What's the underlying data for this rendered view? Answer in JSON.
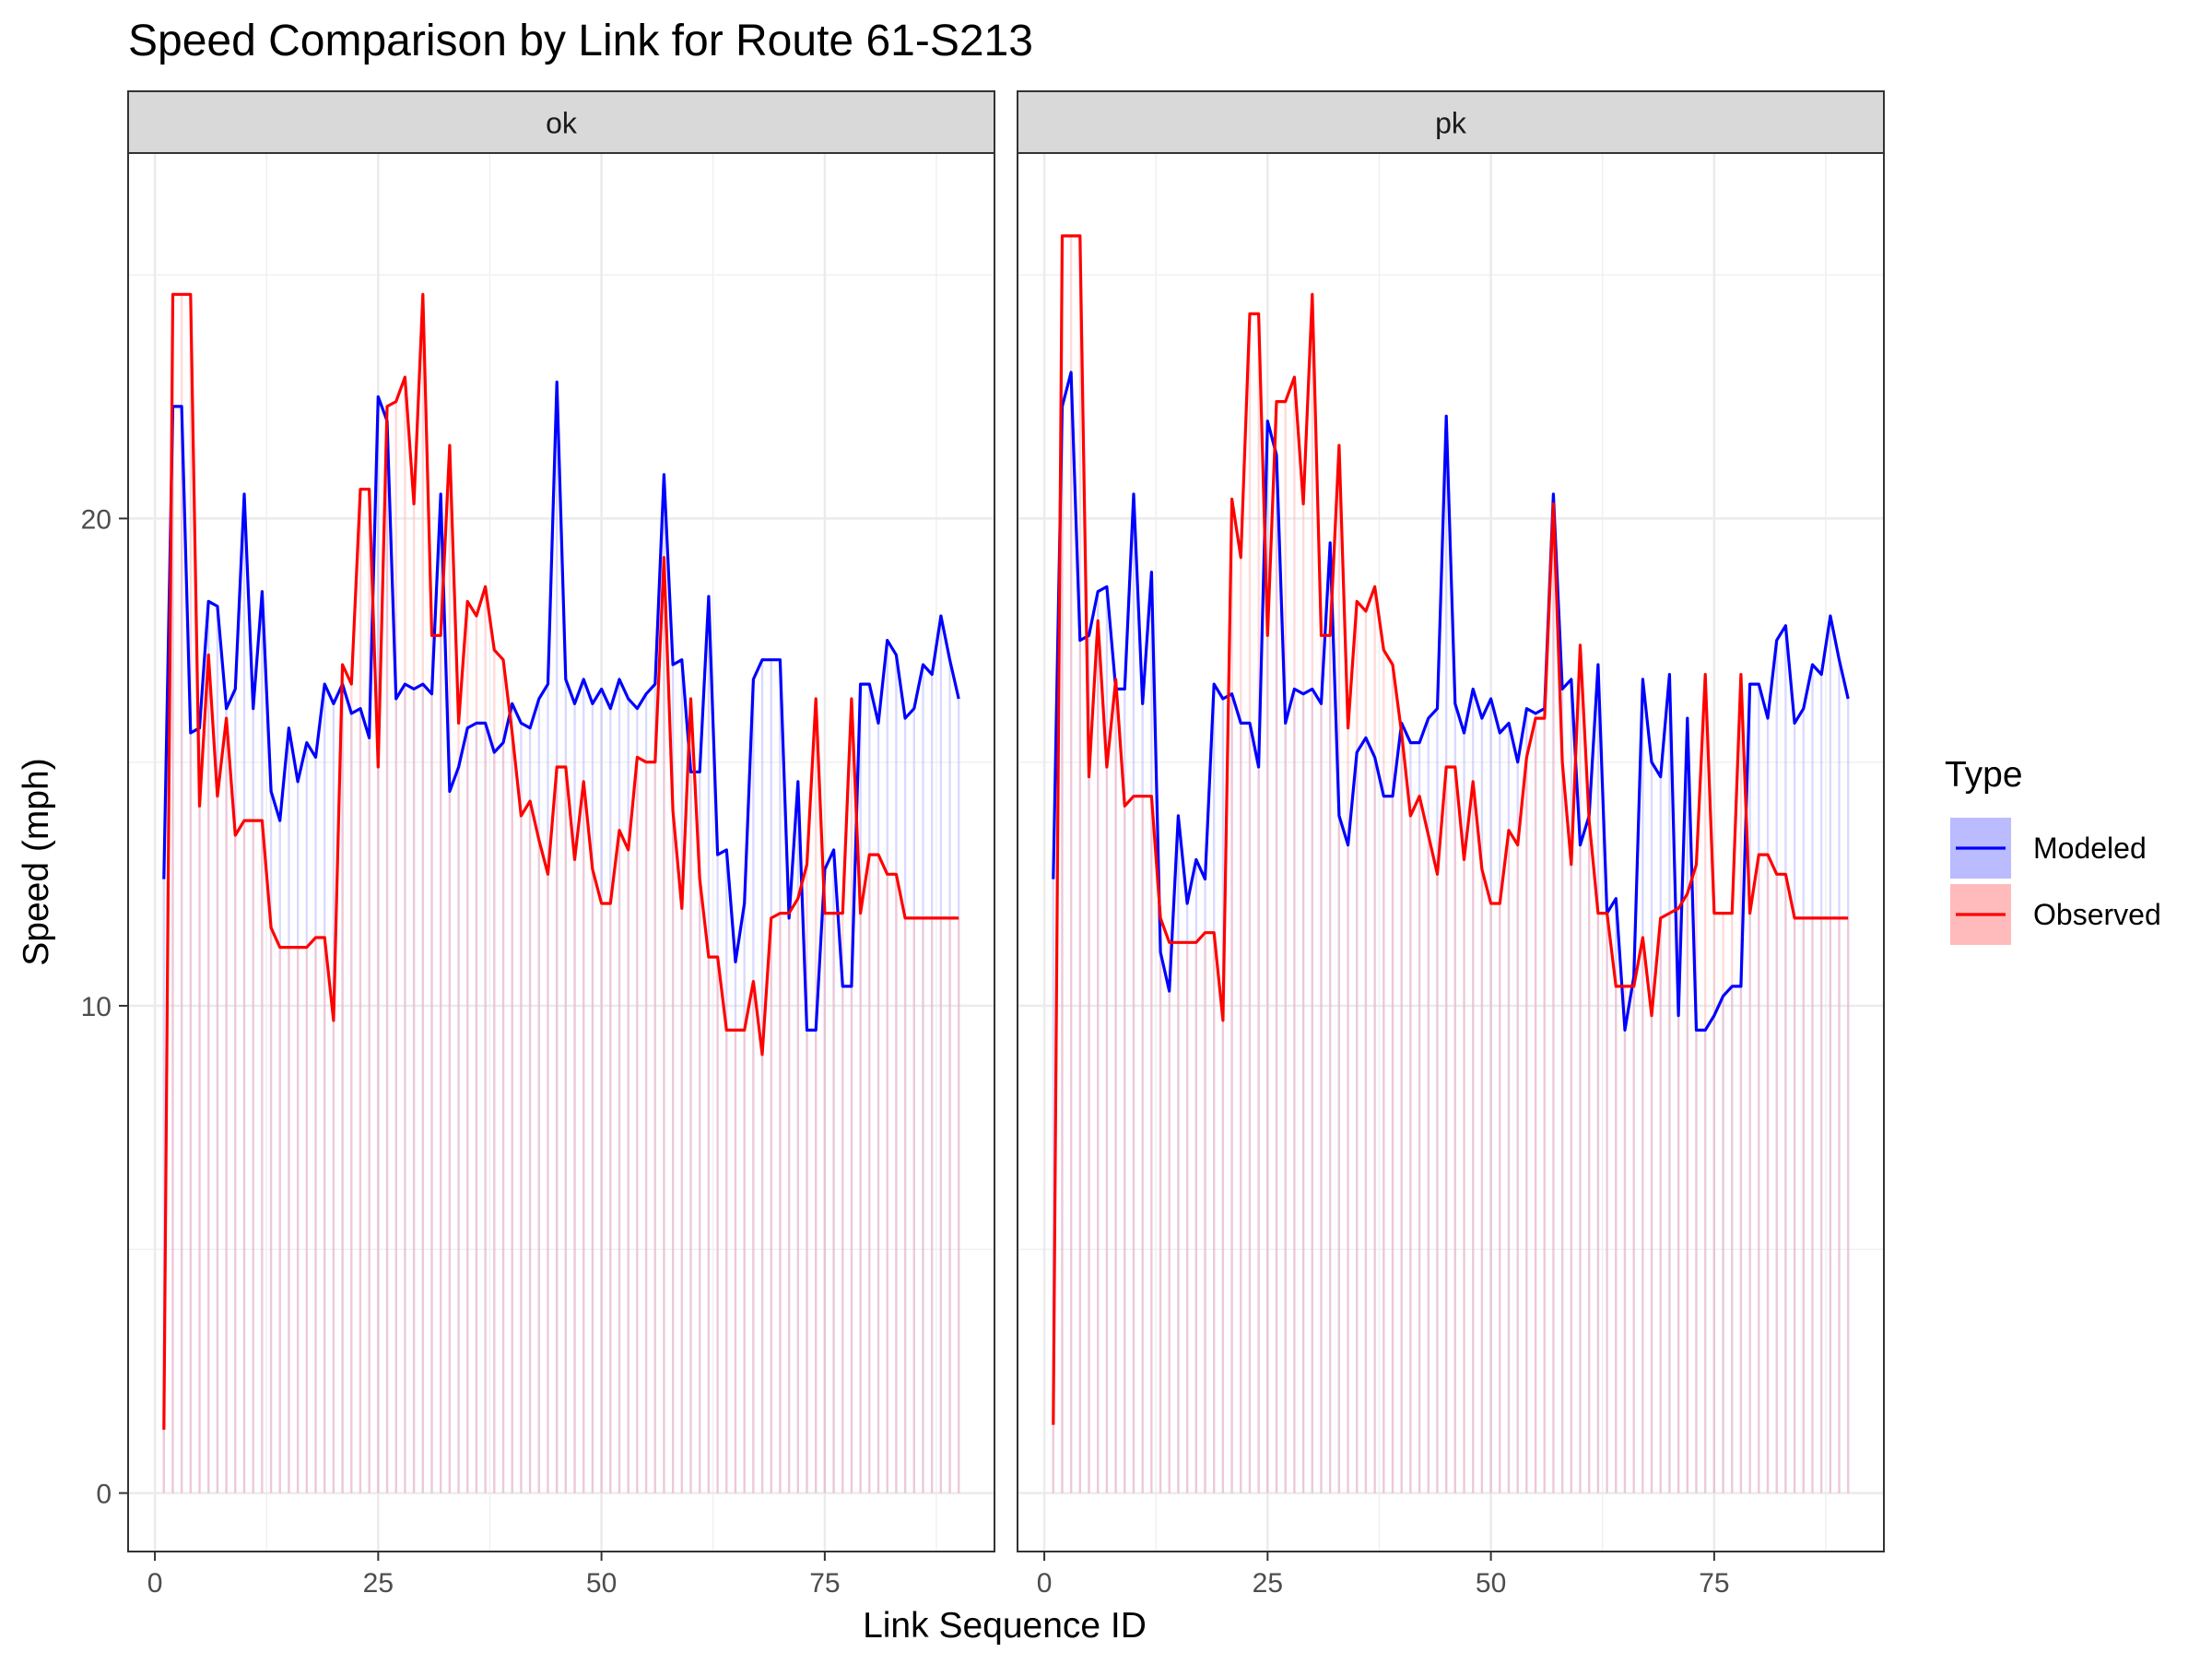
{
  "chart_data": {
    "type": "line",
    "title": "Speed Comparison by Link for Route 61-S213",
    "xlabel": "Link Sequence ID",
    "ylabel": "Speed (mph)",
    "xlim": [
      -3,
      94
    ],
    "ylim": [
      -1.2,
      27.5
    ],
    "x_ticks": [
      0,
      25,
      50,
      75
    ],
    "y_ticks": [
      0,
      10,
      20
    ],
    "grid": true,
    "legend": {
      "title": "Type",
      "position": "right",
      "entries": [
        {
          "label": "Modeled",
          "line_color": "#0000FF",
          "fill_color": "#BBBBFF"
        },
        {
          "label": "Observed",
          "line_color": "#FF0000",
          "fill_color": "#FFBBBB"
        }
      ]
    },
    "panels": [
      {
        "label": "ok",
        "x_start": 1,
        "series": [
          {
            "name": "Modeled",
            "color": "#0000FF",
            "values": [
              12.6,
              22.3,
              22.3,
              15.6,
              15.7,
              18.3,
              18.2,
              16.1,
              16.5,
              20.5,
              16.1,
              18.5,
              14.4,
              13.8,
              15.7,
              14.6,
              15.4,
              15.1,
              16.6,
              16.2,
              16.6,
              16.0,
              16.1,
              15.5,
              22.5,
              22.0,
              16.3,
              16.6,
              16.5,
              16.6,
              16.4,
              20.5,
              14.4,
              14.9,
              15.7,
              15.8,
              15.8,
              15.2,
              15.4,
              16.2,
              15.8,
              15.7,
              16.3,
              16.6,
              22.8,
              16.7,
              16.2,
              16.7,
              16.2,
              16.5,
              16.1,
              16.7,
              16.3,
              16.1,
              16.4,
              16.6,
              20.9,
              17.0,
              17.1,
              14.8,
              14.8,
              18.4,
              13.1,
              13.2,
              10.9,
              12.1,
              16.7,
              17.1,
              17.1,
              17.1,
              11.8,
              14.6,
              9.5,
              9.5,
              12.8,
              13.2,
              10.4,
              10.4,
              16.6,
              16.6,
              15.8,
              17.5,
              17.2,
              15.9,
              16.1,
              17.0,
              16.8,
              18.0,
              17.1,
              16.3
            ]
          },
          {
            "name": "Observed",
            "color": "#FF0000",
            "values": [
              1.3,
              24.6,
              24.6,
              24.6,
              14.1,
              17.2,
              14.3,
              15.9,
              13.5,
              13.8,
              13.8,
              13.8,
              11.6,
              11.2,
              11.2,
              11.2,
              11.2,
              11.4,
              11.4,
              9.7,
              17.0,
              16.6,
              20.6,
              20.6,
              14.9,
              22.3,
              22.4,
              22.9,
              20.3,
              24.6,
              17.6,
              17.6,
              21.5,
              15.8,
              18.3,
              18.0,
              18.6,
              17.3,
              17.1,
              15.6,
              13.9,
              14.2,
              13.4,
              12.7,
              14.9,
              14.9,
              13.0,
              14.6,
              12.8,
              12.1,
              12.1,
              13.6,
              13.2,
              15.1,
              15.0,
              15.0,
              19.2,
              14.0,
              12.0,
              16.3,
              12.6,
              11.0,
              11.0,
              9.5,
              9.5,
              9.5,
              10.5,
              9.0,
              11.8,
              11.9,
              11.9,
              12.2,
              12.9,
              16.3,
              11.9,
              11.9,
              11.9,
              16.3,
              11.9,
              13.1,
              13.1,
              12.7,
              12.7,
              11.8,
              11.8,
              11.8,
              11.8,
              11.8,
              11.8,
              11.8
            ]
          }
        ]
      },
      {
        "label": "pk",
        "x_start": 1,
        "series": [
          {
            "name": "Modeled",
            "color": "#0000FF",
            "values": [
              12.6,
              22.3,
              23.0,
              17.5,
              17.6,
              18.5,
              18.6,
              16.5,
              16.5,
              20.5,
              16.2,
              18.9,
              11.1,
              10.3,
              13.9,
              12.1,
              13.0,
              12.6,
              16.6,
              16.3,
              16.4,
              15.8,
              15.8,
              14.9,
              22.0,
              21.3,
              15.8,
              16.5,
              16.4,
              16.5,
              16.2,
              19.5,
              13.9,
              13.3,
              15.2,
              15.5,
              15.1,
              14.3,
              14.3,
              15.8,
              15.4,
              15.4,
              15.9,
              16.1,
              22.1,
              16.2,
              15.6,
              16.5,
              15.9,
              16.3,
              15.6,
              15.8,
              15.0,
              16.1,
              16.0,
              16.1,
              20.5,
              16.5,
              16.7,
              13.3,
              13.9,
              17.0,
              11.9,
              12.2,
              9.5,
              10.6,
              16.7,
              15.0,
              14.7,
              16.8,
              9.8,
              15.9,
              9.5,
              9.5,
              9.8,
              10.2,
              10.4,
              10.4,
              16.6,
              16.6,
              15.9,
              17.5,
              17.8,
              15.8,
              16.1,
              17.0,
              16.8,
              18.0,
              17.1,
              16.3
            ]
          },
          {
            "name": "Observed",
            "color": "#FF0000",
            "values": [
              1.4,
              25.8,
              25.8,
              25.8,
              14.7,
              17.9,
              14.9,
              16.7,
              14.1,
              14.3,
              14.3,
              14.3,
              11.8,
              11.3,
              11.3,
              11.3,
              11.3,
              11.5,
              11.5,
              9.7,
              20.4,
              19.2,
              24.2,
              24.2,
              17.6,
              22.4,
              22.4,
              22.9,
              20.3,
              24.6,
              17.6,
              17.6,
              21.5,
              15.7,
              18.3,
              18.1,
              18.6,
              17.3,
              17.0,
              15.6,
              13.9,
              14.3,
              13.5,
              12.7,
              14.9,
              14.9,
              13.0,
              14.6,
              12.8,
              12.1,
              12.1,
              13.6,
              13.3,
              15.1,
              15.9,
              15.9,
              20.3,
              15.0,
              12.9,
              17.4,
              13.8,
              11.9,
              11.9,
              10.4,
              10.4,
              10.4,
              11.4,
              9.8,
              11.8,
              11.9,
              12.0,
              12.3,
              12.9,
              16.8,
              11.9,
              11.9,
              11.9,
              16.8,
              11.9,
              13.1,
              13.1,
              12.7,
              12.7,
              11.8,
              11.8,
              11.8,
              11.8,
              11.8,
              11.8,
              11.8
            ]
          }
        ]
      }
    ]
  }
}
